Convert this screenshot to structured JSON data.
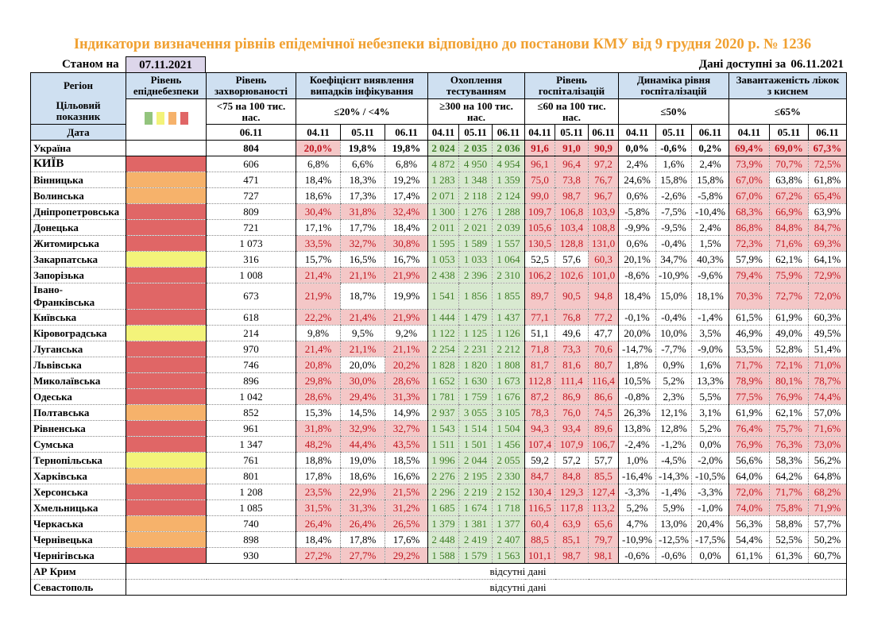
{
  "title": "Індикатори визначення рівнів епідемічної небезпеки відповідно до постанови КМУ від 9 грудня 2020 р. № 1236",
  "as_of_label": "Станом на",
  "as_of_date": "07.11.2021",
  "available_label": "Дані доступні за",
  "available_date": "06.11.2021",
  "headers": {
    "region": "Регіон",
    "target": "Цільовий показник",
    "date": "Дата",
    "epi_level": "Рівень епіднебезпеки",
    "morbidity": "Рівень захворюваності",
    "morbidity_target": "<75 на 100 тис. нас.",
    "coef": "Коефіцієнт виявлення випадків інфікування",
    "coef_target": "≤20% / <4%",
    "testing": "Охоплення тестуванням",
    "testing_target": "≥300 на 100 тис. нас.",
    "hosp": "Рівень госпіталізацій",
    "hosp_target": "≤60 на 100 тис. нас.",
    "dyn": "Динаміка рівня госпіталізацій",
    "dyn_target": "≤50%",
    "beds": "Завантаженість ліжок з киснем",
    "beds_target": "≤65%",
    "morbidity_date": "06.11",
    "dates": [
      "04.11",
      "05.11",
      "06.11"
    ]
  },
  "level_colors": {
    "green": "#93c47d",
    "yellow": "#f3f37a",
    "orange": "#f6b26b",
    "red": "#e06666"
  },
  "highlight_colors": {
    "pink_bg": "#f4c7c7",
    "pink_text": "#c0141e",
    "green_bg": "#d8e9d0",
    "green_text": "#3e7d26"
  },
  "ukraine": {
    "name": "Україна",
    "level": "none",
    "morbidity": "804",
    "coef": [
      "20,0%",
      "19,8%",
      "19,8%"
    ],
    "coef_hl": [
      1,
      0,
      0
    ],
    "testing": [
      "2 024",
      "2 035",
      "2 036"
    ],
    "hosp": [
      "91,6",
      "91,0",
      "90,9"
    ],
    "hosp_hl": [
      1,
      1,
      1
    ],
    "dyn": [
      "0,0%",
      "-0,6%",
      "0,2%"
    ],
    "beds": [
      "69,4%",
      "69,0%",
      "67,3%"
    ],
    "beds_hl": [
      1,
      1,
      1
    ]
  },
  "regions": [
    {
      "name": "КИЇВ",
      "level": "red",
      "morbidity": "606",
      "coef": [
        "6,8%",
        "6,6%",
        "6,8%"
      ],
      "coef_hl": [
        0,
        0,
        0
      ],
      "testing": [
        "4 872",
        "4 950",
        "4 954"
      ],
      "hosp": [
        "96,1",
        "96,4",
        "97,2"
      ],
      "hosp_hl": [
        1,
        1,
        1
      ],
      "dyn": [
        "2,4%",
        "1,6%",
        "2,4%"
      ],
      "beds": [
        "73,9%",
        "70,7%",
        "72,5%"
      ],
      "beds_hl": [
        1,
        1,
        1
      ]
    },
    {
      "name": "Вінницька",
      "level": "orange",
      "morbidity": "471",
      "coef": [
        "18,4%",
        "18,3%",
        "19,2%"
      ],
      "coef_hl": [
        0,
        0,
        0
      ],
      "testing": [
        "1 283",
        "1 348",
        "1 359"
      ],
      "hosp": [
        "75,0",
        "73,8",
        "76,7"
      ],
      "hosp_hl": [
        1,
        1,
        1
      ],
      "dyn": [
        "24,6%",
        "15,8%",
        "15,8%"
      ],
      "beds": [
        "67,0%",
        "63,8%",
        "61,8%"
      ],
      "beds_hl": [
        1,
        0,
        0
      ]
    },
    {
      "name": "Волинська",
      "level": "orange",
      "morbidity": "727",
      "coef": [
        "18,6%",
        "17,3%",
        "17,4%"
      ],
      "coef_hl": [
        0,
        0,
        0
      ],
      "testing": [
        "2 071",
        "2 118",
        "2 124"
      ],
      "hosp": [
        "99,0",
        "98,7",
        "96,7"
      ],
      "hosp_hl": [
        1,
        1,
        1
      ],
      "dyn": [
        "0,6%",
        "-2,6%",
        "-5,8%"
      ],
      "beds": [
        "67,0%",
        "67,2%",
        "65,4%"
      ],
      "beds_hl": [
        1,
        1,
        1
      ]
    },
    {
      "name": "Дніпропетровська",
      "level": "red",
      "morbidity": "809",
      "coef": [
        "30,4%",
        "31,8%",
        "32,4%"
      ],
      "coef_hl": [
        1,
        1,
        1
      ],
      "testing": [
        "1 300",
        "1 276",
        "1 288"
      ],
      "hosp": [
        "109,7",
        "106,8",
        "103,9"
      ],
      "hosp_hl": [
        1,
        1,
        1
      ],
      "dyn": [
        "-5,8%",
        "-7,5%",
        "-10,4%"
      ],
      "beds": [
        "68,3%",
        "66,9%",
        "63,9%"
      ],
      "beds_hl": [
        1,
        1,
        0
      ]
    },
    {
      "name": "Донецька",
      "level": "red",
      "morbidity": "721",
      "coef": [
        "17,1%",
        "17,7%",
        "18,4%"
      ],
      "coef_hl": [
        0,
        0,
        0
      ],
      "testing": [
        "2 011",
        "2 021",
        "2 039"
      ],
      "hosp": [
        "105,6",
        "103,4",
        "108,8"
      ],
      "hosp_hl": [
        1,
        1,
        1
      ],
      "dyn": [
        "-9,9%",
        "-9,5%",
        "2,4%"
      ],
      "beds": [
        "86,8%",
        "84,8%",
        "84,7%"
      ],
      "beds_hl": [
        1,
        1,
        1
      ]
    },
    {
      "name": "Житомирська",
      "level": "red",
      "morbidity": "1 073",
      "coef": [
        "33,5%",
        "32,7%",
        "30,8%"
      ],
      "coef_hl": [
        1,
        1,
        1
      ],
      "testing": [
        "1 595",
        "1 589",
        "1 557"
      ],
      "hosp": [
        "130,5",
        "128,8",
        "131,0"
      ],
      "hosp_hl": [
        1,
        1,
        1
      ],
      "dyn": [
        "0,6%",
        "-0,4%",
        "1,5%"
      ],
      "beds": [
        "72,3%",
        "71,6%",
        "69,3%"
      ],
      "beds_hl": [
        1,
        1,
        1
      ]
    },
    {
      "name": "Закарпатська",
      "level": "yellow",
      "morbidity": "316",
      "coef": [
        "15,7%",
        "16,5%",
        "16,7%"
      ],
      "coef_hl": [
        0,
        0,
        0
      ],
      "testing": [
        "1 053",
        "1 033",
        "1 064"
      ],
      "hosp": [
        "52,5",
        "57,6",
        "60,3"
      ],
      "hosp_hl": [
        0,
        0,
        1
      ],
      "dyn": [
        "20,1%",
        "34,7%",
        "40,3%"
      ],
      "beds": [
        "57,9%",
        "62,1%",
        "64,1%"
      ],
      "beds_hl": [
        0,
        0,
        0
      ]
    },
    {
      "name": "Запорізька",
      "level": "red",
      "morbidity": "1 008",
      "coef": [
        "21,4%",
        "21,1%",
        "21,9%"
      ],
      "coef_hl": [
        1,
        1,
        1
      ],
      "testing": [
        "2 438",
        "2 396",
        "2 310"
      ],
      "hosp": [
        "106,2",
        "102,6",
        "101,0"
      ],
      "hosp_hl": [
        1,
        1,
        1
      ],
      "dyn": [
        "-8,6%",
        "-10,9%",
        "-9,6%"
      ],
      "beds": [
        "79,4%",
        "75,9%",
        "72,9%"
      ],
      "beds_hl": [
        1,
        1,
        1
      ]
    },
    {
      "name": "Івано-Франківська",
      "name_lines": [
        "Івано-",
        "Франківська"
      ],
      "level": "red",
      "morbidity": "673",
      "coef": [
        "21,9%",
        "18,7%",
        "19,9%"
      ],
      "coef_hl": [
        1,
        0,
        0
      ],
      "testing": [
        "1 541",
        "1 856",
        "1 855"
      ],
      "hosp": [
        "89,7",
        "90,5",
        "94,8"
      ],
      "hosp_hl": [
        1,
        1,
        1
      ],
      "dyn": [
        "18,4%",
        "15,0%",
        "18,1%"
      ],
      "beds": [
        "70,3%",
        "72,7%",
        "72,0%"
      ],
      "beds_hl": [
        1,
        1,
        1
      ]
    },
    {
      "name": "Київська",
      "level": "red",
      "morbidity": "618",
      "coef": [
        "22,2%",
        "21,4%",
        "21,9%"
      ],
      "coef_hl": [
        1,
        1,
        1
      ],
      "testing": [
        "1 444",
        "1 479",
        "1 437"
      ],
      "hosp": [
        "77,1",
        "76,8",
        "77,2"
      ],
      "hosp_hl": [
        1,
        1,
        1
      ],
      "dyn": [
        "-0,1%",
        "-0,4%",
        "-1,4%"
      ],
      "beds": [
        "61,5%",
        "61,9%",
        "60,3%"
      ],
      "beds_hl": [
        0,
        0,
        0
      ]
    },
    {
      "name": "Кіровоградська",
      "level": "yellow",
      "morbidity": "214",
      "coef": [
        "9,8%",
        "9,5%",
        "9,2%"
      ],
      "coef_hl": [
        0,
        0,
        0
      ],
      "testing": [
        "1 122",
        "1 125",
        "1 126"
      ],
      "hosp": [
        "51,1",
        "49,6",
        "47,7"
      ],
      "hosp_hl": [
        0,
        0,
        0
      ],
      "dyn": [
        "20,0%",
        "10,0%",
        "3,5%"
      ],
      "beds": [
        "46,9%",
        "49,0%",
        "49,5%"
      ],
      "beds_hl": [
        0,
        0,
        0
      ]
    },
    {
      "name": "Луганська",
      "level": "red",
      "morbidity": "970",
      "coef": [
        "21,4%",
        "21,1%",
        "21,1%"
      ],
      "coef_hl": [
        1,
        1,
        1
      ],
      "testing": [
        "2 254",
        "2 231",
        "2 212"
      ],
      "hosp": [
        "71,8",
        "73,3",
        "70,6"
      ],
      "hosp_hl": [
        1,
        1,
        1
      ],
      "dyn": [
        "-14,7%",
        "-7,7%",
        "-9,0%"
      ],
      "beds": [
        "53,5%",
        "52,8%",
        "51,4%"
      ],
      "beds_hl": [
        0,
        0,
        0
      ]
    },
    {
      "name": "Львівська",
      "level": "red",
      "morbidity": "746",
      "coef": [
        "20,8%",
        "20,0%",
        "20,2%"
      ],
      "coef_hl": [
        1,
        0,
        1
      ],
      "testing": [
        "1 828",
        "1 820",
        "1 808"
      ],
      "hosp": [
        "81,7",
        "81,6",
        "80,7"
      ],
      "hosp_hl": [
        1,
        1,
        1
      ],
      "dyn": [
        "1,8%",
        "0,9%",
        "1,6%"
      ],
      "beds": [
        "71,7%",
        "72,1%",
        "71,0%"
      ],
      "beds_hl": [
        1,
        1,
        1
      ]
    },
    {
      "name": "Миколаївська",
      "level": "red",
      "morbidity": "896",
      "coef": [
        "29,8%",
        "30,0%",
        "28,6%"
      ],
      "coef_hl": [
        1,
        1,
        1
      ],
      "testing": [
        "1 652",
        "1 630",
        "1 673"
      ],
      "hosp": [
        "112,8",
        "111,4",
        "116,4"
      ],
      "hosp_hl": [
        1,
        1,
        1
      ],
      "dyn": [
        "10,5%",
        "5,2%",
        "13,3%"
      ],
      "beds": [
        "78,9%",
        "80,1%",
        "78,7%"
      ],
      "beds_hl": [
        1,
        1,
        1
      ]
    },
    {
      "name": "Одеська",
      "level": "red",
      "morbidity": "1 042",
      "coef": [
        "28,6%",
        "29,4%",
        "31,3%"
      ],
      "coef_hl": [
        1,
        1,
        1
      ],
      "testing": [
        "1 781",
        "1 759",
        "1 676"
      ],
      "hosp": [
        "87,2",
        "86,9",
        "86,6"
      ],
      "hosp_hl": [
        1,
        1,
        1
      ],
      "dyn": [
        "-0,8%",
        "2,3%",
        "5,5%"
      ],
      "beds": [
        "77,5%",
        "76,9%",
        "74,4%"
      ],
      "beds_hl": [
        1,
        1,
        1
      ]
    },
    {
      "name": "Полтавська",
      "level": "orange",
      "morbidity": "852",
      "coef": [
        "15,3%",
        "14,5%",
        "14,9%"
      ],
      "coef_hl": [
        0,
        0,
        0
      ],
      "testing": [
        "2 937",
        "3 055",
        "3 105"
      ],
      "hosp": [
        "78,3",
        "76,0",
        "74,5"
      ],
      "hosp_hl": [
        1,
        1,
        1
      ],
      "dyn": [
        "26,3%",
        "12,1%",
        "3,1%"
      ],
      "beds": [
        "61,9%",
        "62,1%",
        "57,0%"
      ],
      "beds_hl": [
        0,
        0,
        0
      ]
    },
    {
      "name": "Рівненська",
      "level": "red",
      "morbidity": "961",
      "coef": [
        "31,8%",
        "32,9%",
        "32,7%"
      ],
      "coef_hl": [
        1,
        1,
        1
      ],
      "testing": [
        "1 543",
        "1 514",
        "1 504"
      ],
      "hosp": [
        "94,3",
        "93,4",
        "89,6"
      ],
      "hosp_hl": [
        1,
        1,
        1
      ],
      "dyn": [
        "13,8%",
        "12,8%",
        "5,2%"
      ],
      "beds": [
        "76,4%",
        "75,7%",
        "71,6%"
      ],
      "beds_hl": [
        1,
        1,
        1
      ]
    },
    {
      "name": "Сумська",
      "level": "red",
      "morbidity": "1 347",
      "coef": [
        "48,2%",
        "44,4%",
        "43,5%"
      ],
      "coef_hl": [
        1,
        1,
        1
      ],
      "testing": [
        "1 511",
        "1 501",
        "1 456"
      ],
      "hosp": [
        "107,4",
        "107,9",
        "106,7"
      ],
      "hosp_hl": [
        1,
        1,
        1
      ],
      "dyn": [
        "-2,4%",
        "-1,2%",
        "0,0%"
      ],
      "beds": [
        "76,9%",
        "76,3%",
        "73,0%"
      ],
      "beds_hl": [
        1,
        1,
        1
      ]
    },
    {
      "name": "Тернопільська",
      "level": "yellow",
      "morbidity": "761",
      "coef": [
        "18,8%",
        "19,0%",
        "18,5%"
      ],
      "coef_hl": [
        0,
        0,
        0
      ],
      "testing": [
        "1 996",
        "2 044",
        "2 055"
      ],
      "hosp": [
        "59,2",
        "57,2",
        "57,7"
      ],
      "hosp_hl": [
        0,
        0,
        0
      ],
      "dyn": [
        "1,0%",
        "-4,5%",
        "-2,0%"
      ],
      "beds": [
        "56,6%",
        "58,3%",
        "56,2%"
      ],
      "beds_hl": [
        0,
        0,
        0
      ]
    },
    {
      "name": "Харківська",
      "level": "orange",
      "morbidity": "801",
      "coef": [
        "17,8%",
        "18,6%",
        "16,6%"
      ],
      "coef_hl": [
        0,
        0,
        0
      ],
      "testing": [
        "2 276",
        "2 195",
        "2 330"
      ],
      "hosp": [
        "84,7",
        "84,8",
        "85,5"
      ],
      "hosp_hl": [
        1,
        1,
        1
      ],
      "dyn": [
        "-16,4%",
        "-14,3%",
        "-10,5%"
      ],
      "beds": [
        "64,0%",
        "64,2%",
        "64,8%"
      ],
      "beds_hl": [
        0,
        0,
        0
      ]
    },
    {
      "name": "Херсонська",
      "level": "red",
      "morbidity": "1 208",
      "coef": [
        "23,5%",
        "22,9%",
        "21,5%"
      ],
      "coef_hl": [
        1,
        1,
        1
      ],
      "testing": [
        "2 296",
        "2 219",
        "2 152"
      ],
      "hosp": [
        "130,4",
        "129,3",
        "127,4"
      ],
      "hosp_hl": [
        1,
        1,
        1
      ],
      "dyn": [
        "-3,3%",
        "-1,4%",
        "-3,3%"
      ],
      "beds": [
        "72,0%",
        "71,7%",
        "68,2%"
      ],
      "beds_hl": [
        1,
        1,
        1
      ]
    },
    {
      "name": "Хмельницька",
      "level": "red",
      "morbidity": "1 085",
      "coef": [
        "31,5%",
        "31,3%",
        "31,2%"
      ],
      "coef_hl": [
        1,
        1,
        1
      ],
      "testing": [
        "1 685",
        "1 674",
        "1 718"
      ],
      "hosp": [
        "116,5",
        "117,8",
        "113,2"
      ],
      "hosp_hl": [
        1,
        1,
        1
      ],
      "dyn": [
        "5,2%",
        "5,9%",
        "-1,0%"
      ],
      "beds": [
        "74,0%",
        "75,8%",
        "71,9%"
      ],
      "beds_hl": [
        1,
        1,
        1
      ]
    },
    {
      "name": "Черкаська",
      "level": "orange",
      "morbidity": "740",
      "coef": [
        "26,4%",
        "26,4%",
        "26,5%"
      ],
      "coef_hl": [
        1,
        1,
        1
      ],
      "testing": [
        "1 379",
        "1 381",
        "1 377"
      ],
      "hosp": [
        "60,4",
        "63,9",
        "65,6"
      ],
      "hosp_hl": [
        1,
        1,
        1
      ],
      "dyn": [
        "4,7%",
        "13,0%",
        "20,4%"
      ],
      "beds": [
        "56,3%",
        "58,8%",
        "57,7%"
      ],
      "beds_hl": [
        0,
        0,
        0
      ]
    },
    {
      "name": "Чернівецька",
      "level": "orange",
      "morbidity": "898",
      "coef": [
        "18,4%",
        "17,8%",
        "17,6%"
      ],
      "coef_hl": [
        0,
        0,
        0
      ],
      "testing": [
        "2 448",
        "2 419",
        "2 407"
      ],
      "hosp": [
        "88,5",
        "85,1",
        "79,7"
      ],
      "hosp_hl": [
        1,
        1,
        1
      ],
      "dyn": [
        "-10,9%",
        "-12,5%",
        "-17,5%"
      ],
      "beds": [
        "54,4%",
        "52,5%",
        "50,2%"
      ],
      "beds_hl": [
        0,
        0,
        0
      ]
    },
    {
      "name": "Чернігівська",
      "level": "red",
      "morbidity": "930",
      "coef": [
        "27,2%",
        "27,7%",
        "29,2%"
      ],
      "coef_hl": [
        1,
        1,
        1
      ],
      "testing": [
        "1 588",
        "1 579",
        "1 563"
      ],
      "hosp": [
        "101,1",
        "98,7",
        "98,1"
      ],
      "hosp_hl": [
        1,
        1,
        1
      ],
      "dyn": [
        "-0,6%",
        "-0,6%",
        "0,0%"
      ],
      "beds": [
        "61,1%",
        "61,3%",
        "60,7%"
      ],
      "beds_hl": [
        0,
        0,
        0
      ]
    }
  ],
  "no_data_rows": [
    {
      "name": "АР Крим",
      "text": "відсутні дані"
    },
    {
      "name": "Севастополь",
      "text": "відсутні дані"
    }
  ]
}
